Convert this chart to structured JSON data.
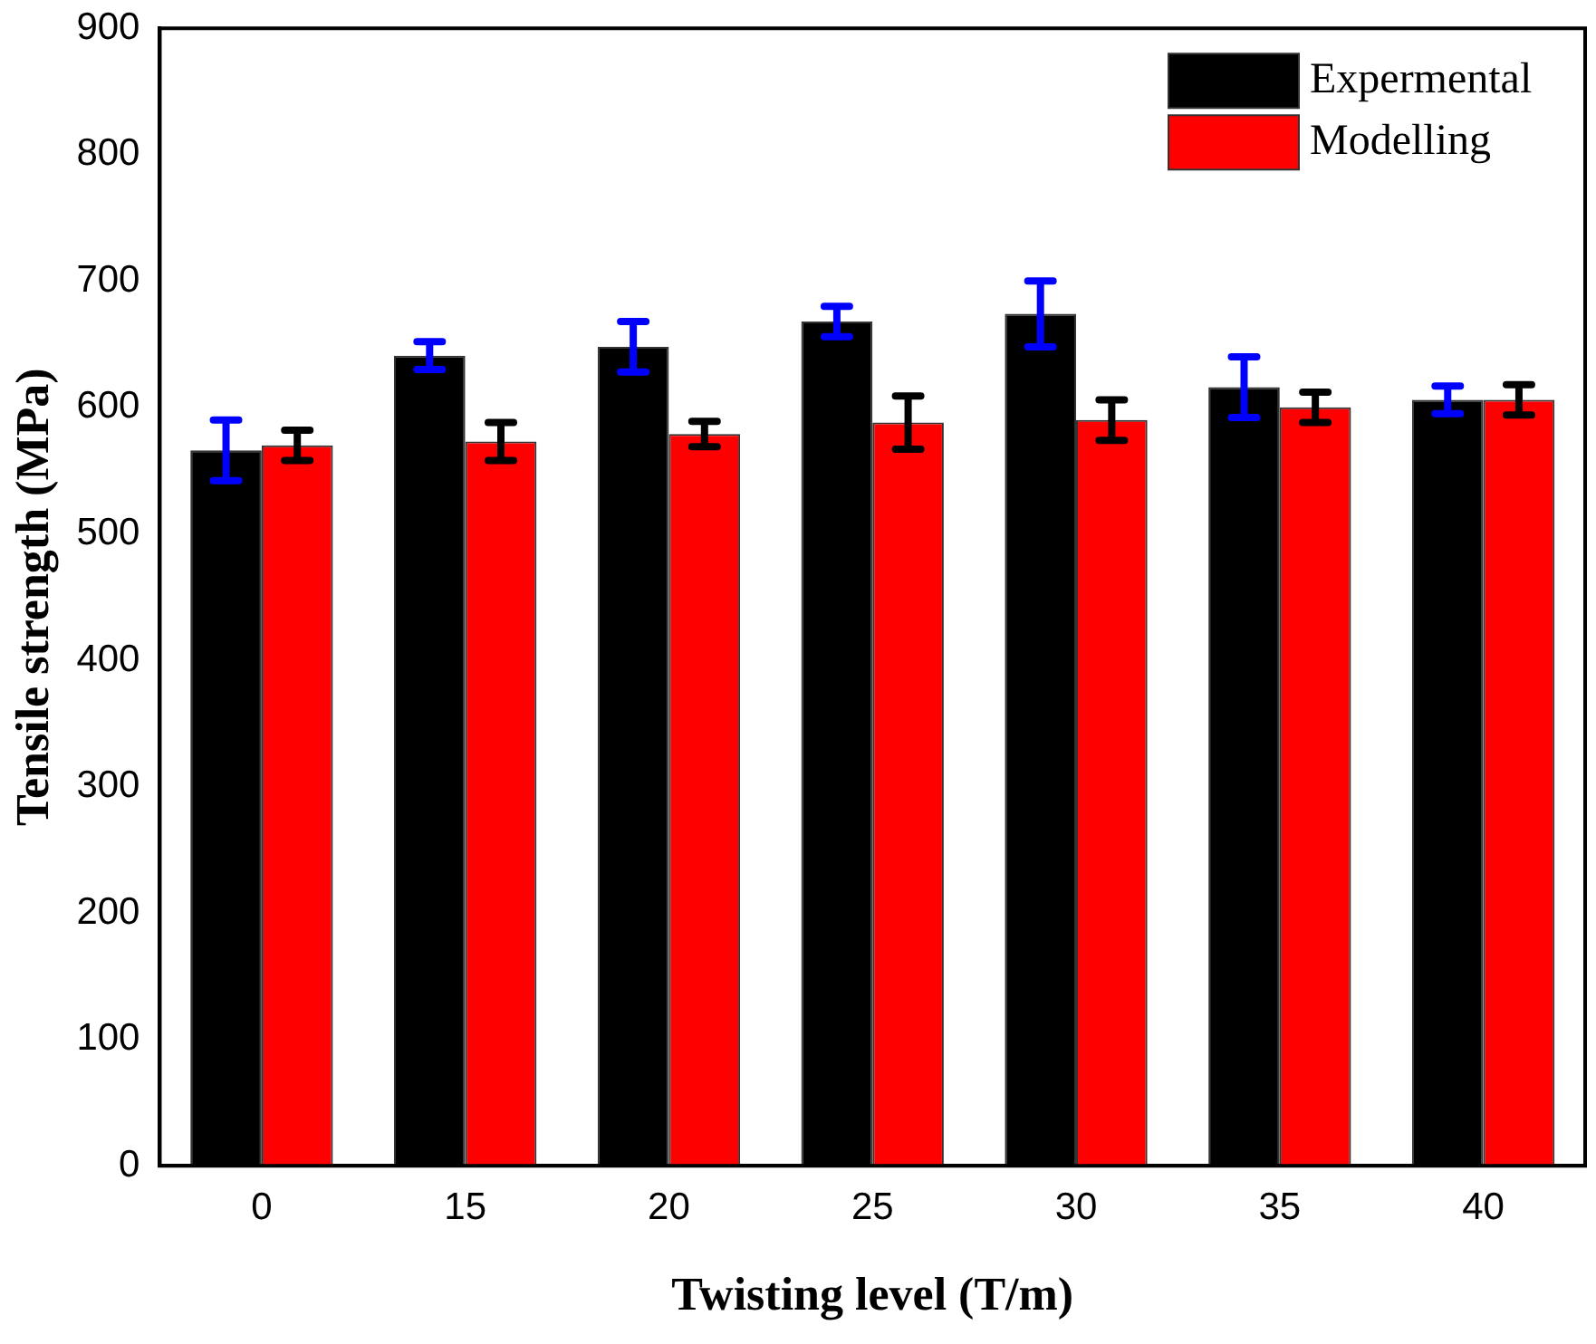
{
  "chart_data": {
    "type": "bar",
    "xlabel": "Twisting level (T/m)",
    "ylabel": "Tensile strength (MPa)",
    "categories": [
      "0",
      "15",
      "20",
      "25",
      "30",
      "35",
      "40"
    ],
    "series": [
      {
        "name": "Expermental",
        "color": "#000000",
        "values": [
          566,
          641,
          648,
          668,
          674,
          616,
          606
        ],
        "errors": [
          24,
          11,
          20,
          12,
          26,
          24,
          11
        ]
      },
      {
        "name": "Modelling",
        "color": "#ff0000",
        "values": [
          570,
          573,
          579,
          588,
          590,
          600,
          606
        ],
        "errors": [
          12,
          15,
          10,
          21,
          16,
          12,
          12
        ]
      }
    ],
    "ylim": [
      0,
      900
    ],
    "yticks": [
      0,
      100,
      200,
      300,
      400,
      500,
      600,
      700,
      800,
      900
    ],
    "grid": false,
    "legend": "top right"
  }
}
